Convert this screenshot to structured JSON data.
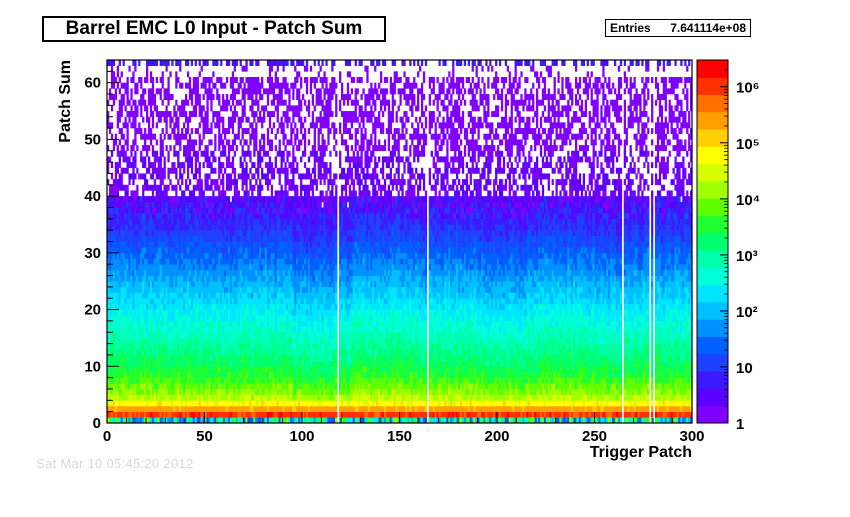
{
  "title": "Barrel EMC L0 Input - Patch Sum",
  "stats": {
    "label": "Entries",
    "value": "7.641114e+08"
  },
  "footer_timestamp": "Sat Mar 10 05:45:20 2012",
  "chart_data": {
    "type": "heatmap",
    "title": "Barrel EMC L0 Input - Patch Sum",
    "xlabel": "Trigger Patch",
    "ylabel": "Patch Sum",
    "xlim": [
      0,
      300
    ],
    "ylim": [
      0,
      64
    ],
    "x_ticks": [
      0,
      50,
      100,
      150,
      200,
      250,
      300
    ],
    "y_ticks": [
      0,
      10,
      20,
      30,
      40,
      50,
      60
    ],
    "z_scale": "log",
    "z_range": [
      1,
      3000000
    ],
    "colorbar_ticks": [
      {
        "value": 1,
        "label": "1"
      },
      {
        "value": 10,
        "label": "10"
      },
      {
        "value": 100,
        "label": "10²"
      },
      {
        "value": 1000,
        "label": "10³"
      },
      {
        "value": 10000,
        "label": "10⁴"
      },
      {
        "value": 100000,
        "label": "10⁵"
      },
      {
        "value": 1000000,
        "label": "10⁶"
      }
    ],
    "empty_patches": [
      118,
      164,
      264,
      278,
      280
    ],
    "typical_counts_by_patch_sum": [
      {
        "patch_sum": 0,
        "counts": 2000
      },
      {
        "patch_sum": 1,
        "counts": 1000000
      },
      {
        "patch_sum": 2,
        "counts": 300000
      },
      {
        "patch_sum": 3,
        "counts": 60000
      },
      {
        "patch_sum": 5,
        "counts": 15000
      },
      {
        "patch_sum": 8,
        "counts": 4000
      },
      {
        "patch_sum": 12,
        "counts": 1500
      },
      {
        "patch_sum": 16,
        "counts": 600
      },
      {
        "patch_sum": 20,
        "counts": 250
      },
      {
        "patch_sum": 25,
        "counts": 80
      },
      {
        "patch_sum": 30,
        "counts": 25
      },
      {
        "patch_sum": 35,
        "counts": 8
      },
      {
        "patch_sum": 40,
        "counts": 3
      },
      {
        "patch_sum": 45,
        "counts": 1.6
      },
      {
        "patch_sum": 50,
        "counts": 1
      },
      {
        "patch_sum": 63,
        "counts": 3
      }
    ],
    "palette": [
      "#8000ff",
      "#5a00ff",
      "#3c1aff",
      "#2040ff",
      "#0060ff",
      "#0090ff",
      "#00bfff",
      "#00e5ff",
      "#00ffd8",
      "#00ffaa",
      "#00ff70",
      "#20ff30",
      "#60ff00",
      "#a0ff00",
      "#d8ff00",
      "#ffff00",
      "#ffd000",
      "#ffa000",
      "#ff7000",
      "#ff3000",
      "#ff0000"
    ]
  }
}
